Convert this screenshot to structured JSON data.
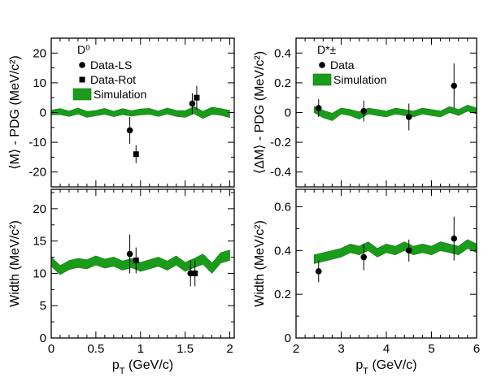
{
  "chart_data": [
    {
      "id": "d0-mass",
      "type": "scatter",
      "title": "",
      "label": "D⁰",
      "xlabel": "",
      "ylabel": "⟨M⟩ - PDG (MeV/c²)",
      "xlim": [
        0,
        2.05
      ],
      "ylim": [
        -25,
        25
      ],
      "xticks": [
        0,
        0.5,
        1,
        1.5,
        2
      ],
      "xtick_labels": [
        "",
        "",
        "",
        "",
        ""
      ],
      "yticks": [
        -20,
        -10,
        0,
        10,
        20
      ],
      "ytick_labels": [
        "-20",
        "-10",
        "0",
        "10",
        "20"
      ],
      "legend": [
        "Data-LS",
        "Data-Rot",
        "Simulation"
      ],
      "series": [
        {
          "name": "Data-LS",
          "marker": "circle",
          "x": [
            0.88,
            1.58
          ],
          "y": [
            -6,
            3
          ],
          "yerr": [
            4.5,
            3.5
          ]
        },
        {
          "name": "Data-Rot",
          "marker": "square",
          "x": [
            0.95,
            1.63
          ],
          "y": [
            -14,
            5
          ],
          "yerr": [
            3,
            4
          ]
        }
      ],
      "band": {
        "name": "Simulation",
        "x": [
          0.0,
          0.1,
          0.2,
          0.3,
          0.4,
          0.5,
          0.6,
          0.7,
          0.8,
          0.9,
          1.0,
          1.1,
          1.2,
          1.3,
          1.4,
          1.5,
          1.6,
          1.7,
          1.8,
          1.9,
          2.0
        ],
        "center": [
          0.0,
          0.3,
          -0.4,
          0.5,
          -0.6,
          -0.2,
          0.4,
          -0.5,
          0.3,
          -0.3,
          0.2,
          0.4,
          -0.4,
          0.5,
          -0.3,
          -0.5,
          0.8,
          -0.8,
          0.6,
          0.2,
          -0.5
        ],
        "halfwidth": [
          0.8,
          1.0,
          0.9,
          1.0,
          1.0,
          0.9,
          1.0,
          0.9,
          1.0,
          0.9,
          1.0,
          1.0,
          0.9,
          1.0,
          1.0,
          1.1,
          1.2,
          1.2,
          1.2,
          1.1,
          1.2
        ]
      }
    },
    {
      "id": "dstar-mass",
      "type": "scatter",
      "title": "",
      "label": "D*±",
      "xlabel": "",
      "ylabel": "⟨ΔM⟩ - PDG (MeV/c²)",
      "xlim": [
        2,
        6
      ],
      "ylim": [
        -0.5,
        0.5
      ],
      "xticks": [
        2,
        3,
        4,
        5,
        6
      ],
      "xtick_labels": [
        "",
        "",
        "",
        "",
        ""
      ],
      "yticks": [
        -0.4,
        -0.2,
        0,
        0.2,
        0.4
      ],
      "ytick_labels": [
        "-0.4",
        "-0.2",
        "0",
        "0.2",
        "0.4"
      ],
      "legend": [
        "Data",
        "Simulation"
      ],
      "series": [
        {
          "name": "Data",
          "marker": "circle",
          "x": [
            2.5,
            3.5,
            4.5,
            5.5
          ],
          "y": [
            0.03,
            0.01,
            -0.03,
            0.18
          ],
          "yerr": [
            0.06,
            0.07,
            0.09,
            0.15
          ]
        }
      ],
      "band": {
        "name": "Simulation",
        "x": [
          2.4,
          2.6,
          2.8,
          3.0,
          3.2,
          3.4,
          3.6,
          3.8,
          4.0,
          4.2,
          4.4,
          4.6,
          4.8,
          5.0,
          5.2,
          5.4,
          5.6,
          5.8,
          6.0
        ],
        "center": [
          0.02,
          -0.01,
          -0.03,
          0.01,
          0.0,
          -0.02,
          0.01,
          0.0,
          -0.01,
          0.01,
          0.0,
          -0.01,
          0.01,
          0.0,
          -0.01,
          0.02,
          0.0,
          0.03,
          0.01
        ],
        "halfwidth": [
          0.02,
          0.025,
          0.025,
          0.02,
          0.02,
          0.025,
          0.02,
          0.02,
          0.02,
          0.02,
          0.02,
          0.02,
          0.02,
          0.02,
          0.02,
          0.02,
          0.02,
          0.02,
          0.02
        ]
      }
    },
    {
      "id": "d0-width",
      "type": "scatter",
      "title": "",
      "label": "",
      "xlabel": "p_T (GeV/c)",
      "ylabel": "Width (MeV/c²)",
      "xlim": [
        0,
        2.05
      ],
      "ylim": [
        0,
        23
      ],
      "xticks": [
        0,
        0.5,
        1,
        1.5,
        2
      ],
      "xtick_labels": [
        "0",
        "0.5",
        "1",
        "1.5",
        "2"
      ],
      "yticks": [
        0,
        5,
        10,
        15,
        20
      ],
      "ytick_labels": [
        "0",
        "5",
        "10",
        "15",
        "20"
      ],
      "legend": [],
      "series": [
        {
          "name": "Data-LS",
          "marker": "circle",
          "x": [
            0.88,
            1.56
          ],
          "y": [
            13,
            10
          ],
          "yerr": [
            3,
            2
          ]
        },
        {
          "name": "Data-Rot",
          "marker": "square",
          "x": [
            0.95,
            1.61
          ],
          "y": [
            12,
            10
          ],
          "yerr": [
            2,
            2
          ]
        }
      ],
      "band": {
        "name": "Simulation",
        "x": [
          0.0,
          0.1,
          0.2,
          0.3,
          0.4,
          0.5,
          0.6,
          0.7,
          0.8,
          0.9,
          1.0,
          1.1,
          1.2,
          1.3,
          1.4,
          1.5,
          1.6,
          1.7,
          1.8,
          1.9,
          2.0
        ],
        "center": [
          11.8,
          10.5,
          11.3,
          11.6,
          11.4,
          12.0,
          11.5,
          11.8,
          11.2,
          11.6,
          11.0,
          11.4,
          11.8,
          11.2,
          12.0,
          11.0,
          11.6,
          12.2,
          10.8,
          12.4,
          12.8
        ],
        "halfwidth": [
          0.7,
          0.7,
          0.7,
          0.7,
          0.7,
          0.7,
          0.7,
          0.7,
          0.7,
          0.7,
          0.7,
          0.7,
          0.7,
          0.7,
          0.7,
          0.7,
          0.7,
          0.8,
          0.8,
          0.8,
          0.8
        ]
      }
    },
    {
      "id": "dstar-width",
      "type": "scatter",
      "title": "",
      "label": "",
      "xlabel": "p_T (GeV/c)",
      "ylabel": "Width (MeV/c²)",
      "xlim": [
        2,
        6
      ],
      "ylim": [
        0,
        0.68
      ],
      "xticks": [
        2,
        3,
        4,
        5,
        6
      ],
      "xtick_labels": [
        "2",
        "3",
        "4",
        "5",
        "6"
      ],
      "yticks": [
        0,
        0.2,
        0.4,
        0.6
      ],
      "ytick_labels": [
        "0",
        "0.2",
        "0.4",
        "0.6"
      ],
      "legend": [],
      "series": [
        {
          "name": "Data",
          "marker": "circle",
          "x": [
            2.5,
            3.5,
            4.5,
            5.5
          ],
          "y": [
            0.305,
            0.37,
            0.4,
            0.455
          ],
          "yerr": [
            0.05,
            0.06,
            0.05,
            0.1
          ]
        }
      ],
      "band": {
        "name": "Simulation",
        "x": [
          2.4,
          2.6,
          2.8,
          3.0,
          3.2,
          3.4,
          3.6,
          3.8,
          4.0,
          4.2,
          4.4,
          4.6,
          4.8,
          5.0,
          5.2,
          5.4,
          5.6,
          5.8,
          6.0
        ],
        "center": [
          0.36,
          0.37,
          0.38,
          0.39,
          0.41,
          0.4,
          0.42,
          0.39,
          0.41,
          0.4,
          0.42,
          0.4,
          0.41,
          0.4,
          0.42,
          0.41,
          0.4,
          0.43,
          0.41
        ],
        "halfwidth": [
          0.02,
          0.02,
          0.02,
          0.02,
          0.02,
          0.02,
          0.02,
          0.02,
          0.02,
          0.02,
          0.02,
          0.02,
          0.02,
          0.02,
          0.02,
          0.02,
          0.02,
          0.02,
          0.02
        ]
      }
    }
  ],
  "colors": {
    "band_fill": "#1a9c1a",
    "band_edge": "#0a7a0a",
    "marker": "#000000",
    "axis": "#000000"
  }
}
